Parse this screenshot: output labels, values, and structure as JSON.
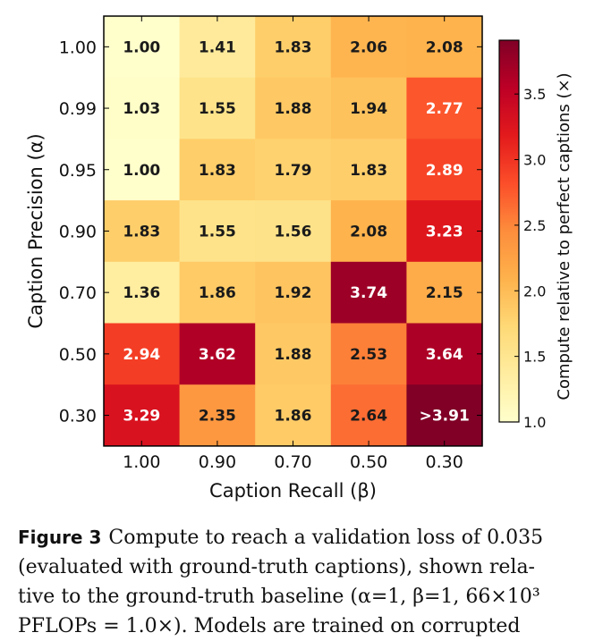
{
  "chart_data": {
    "type": "heatmap",
    "xlabel": "Caption Recall (β)",
    "ylabel": "Caption Precision (α)",
    "x_categories": [
      "1.00",
      "0.90",
      "0.70",
      "0.50",
      "0.30"
    ],
    "y_categories": [
      "1.00",
      "0.99",
      "0.95",
      "0.90",
      "0.70",
      "0.50",
      "0.30"
    ],
    "values": [
      [
        1.0,
        1.41,
        1.83,
        2.06,
        2.08
      ],
      [
        1.03,
        1.55,
        1.88,
        1.94,
        2.77
      ],
      [
        1.0,
        1.83,
        1.79,
        1.83,
        2.89
      ],
      [
        1.83,
        1.55,
        1.56,
        2.08,
        3.23
      ],
      [
        1.36,
        1.86,
        1.92,
        3.74,
        2.15
      ],
      [
        2.94,
        3.62,
        1.88,
        2.53,
        3.64
      ],
      [
        3.29,
        2.35,
        1.86,
        2.64,
        3.91
      ]
    ],
    "cell_labels": [
      [
        "1.00",
        "1.41",
        "1.83",
        "2.06",
        "2.08"
      ],
      [
        "1.03",
        "1.55",
        "1.88",
        "1.94",
        "2.77"
      ],
      [
        "1.00",
        "1.83",
        "1.79",
        "1.83",
        "2.89"
      ],
      [
        "1.83",
        "1.55",
        "1.56",
        "2.08",
        "3.23"
      ],
      [
        "1.36",
        "1.86",
        "1.92",
        "3.74",
        "2.15"
      ],
      [
        "2.94",
        "3.62",
        "1.88",
        "2.53",
        "3.64"
      ],
      [
        "3.29",
        "2.35",
        "1.86",
        "2.64",
        ">3.91"
      ]
    ],
    "colorbar": {
      "label": "Compute relative to perfect captions (×)",
      "range": [
        1.0,
        3.91
      ],
      "ticks": [
        "1.0",
        "1.5",
        "2.0",
        "2.5",
        "3.0",
        "3.5"
      ],
      "colormap": "YlOrRd"
    }
  },
  "caption": {
    "figure_label": "Figure 3",
    "lines": [
      "Compute to reach a validation loss of 0.035",
      "(evaluated with ground-truth captions), shown rela-",
      "tive to the ground-truth baseline (α=1, β=1, 66×10³",
      "PFLOPs = 1.0×). Models are trained on corrupted"
    ]
  }
}
